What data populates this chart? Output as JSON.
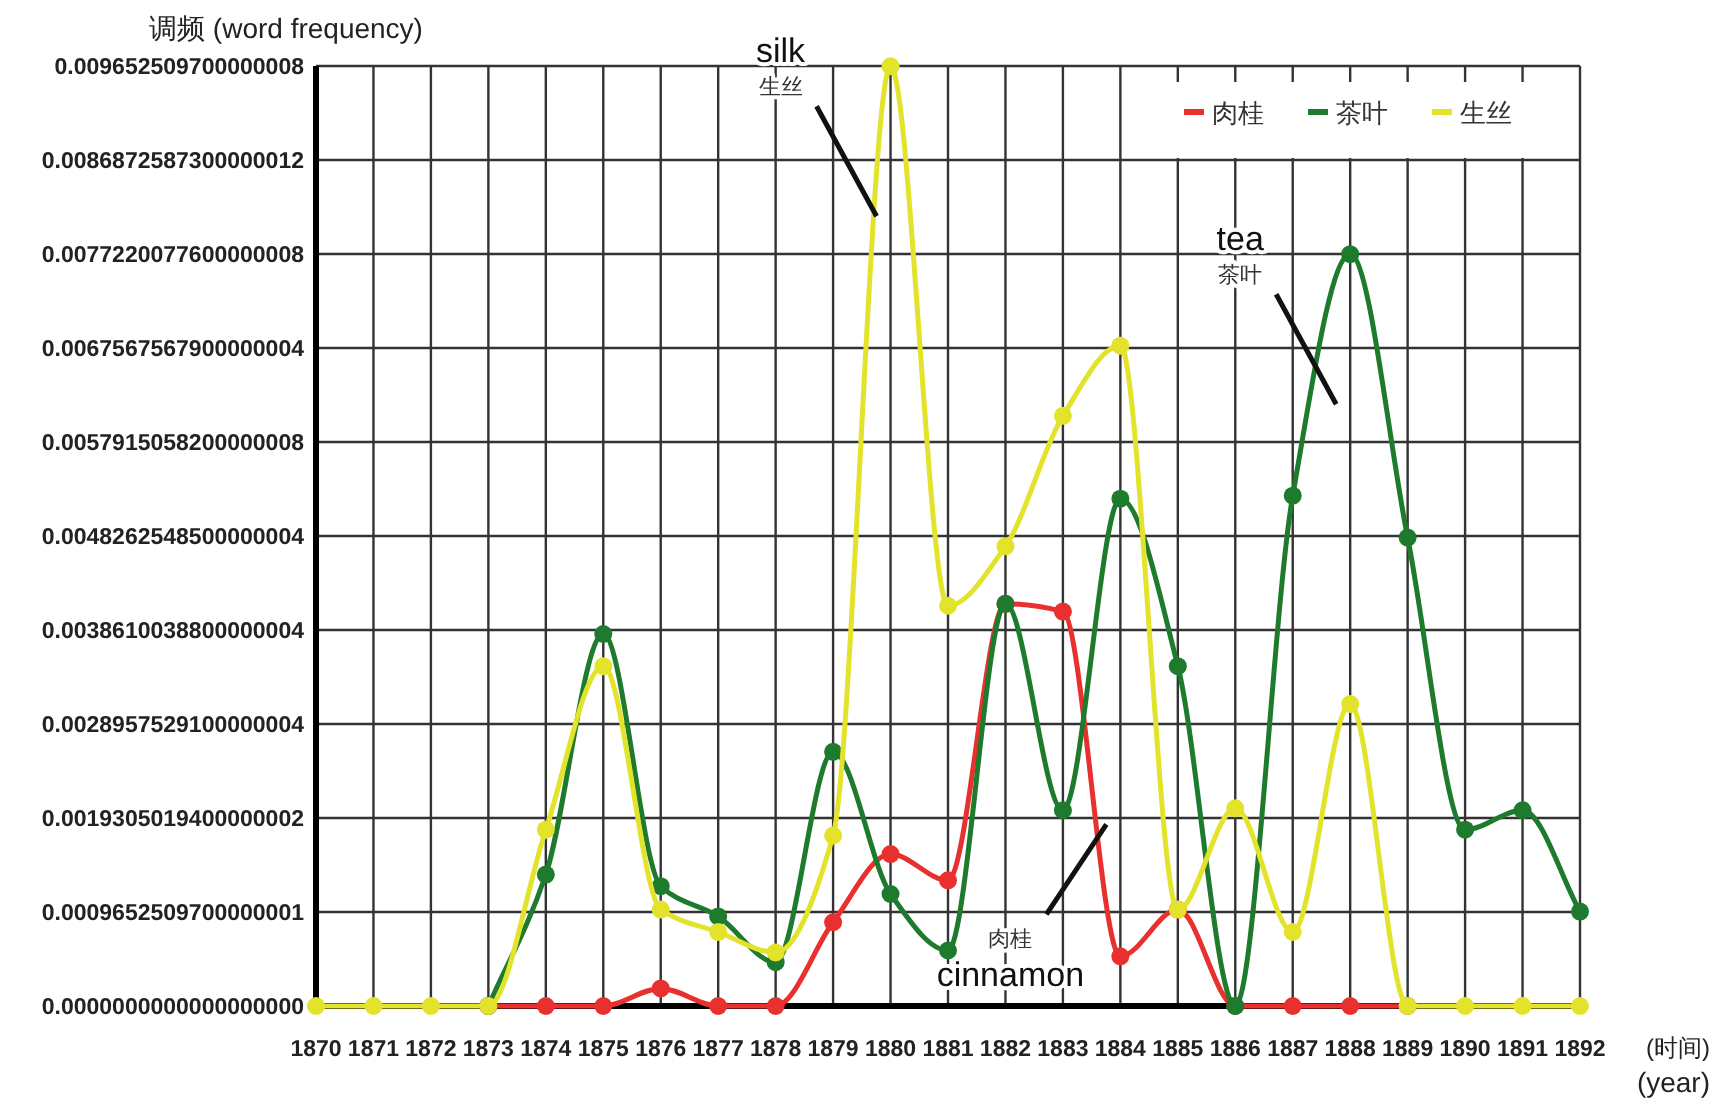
{
  "chart_data": {
    "type": "line",
    "ylabel": "调频 (word frequency)",
    "xlabel": "(时间)\n(year)",
    "categories": [
      "1870",
      "1871",
      "1872",
      "1873",
      "1874",
      "1875",
      "1876",
      "1877",
      "1878",
      "1879",
      "1880",
      "1881",
      "1882",
      "1883",
      "1884",
      "1885",
      "1886",
      "1887",
      "1888",
      "1889",
      "1890",
      "1891",
      "1892"
    ],
    "ylim": [
      0,
      0.0096525097
    ],
    "yticks": [
      {
        "value": 0,
        "label": "0.0000000000000000000"
      },
      {
        "value": 0.00096525097,
        "label": "0.0009652509700000001"
      },
      {
        "value": 0.00193050194,
        "label": "0.0019305019400000002"
      },
      {
        "value": 0.00289575291,
        "label": "0.0028957529100000004"
      },
      {
        "value": 0.00386100388,
        "label": "0.0038610038800000004"
      },
      {
        "value": 0.00482625485,
        "label": "0.0048262548500000004"
      },
      {
        "value": 0.00579150582,
        "label": "0.0057915058200000008"
      },
      {
        "value": 0.00675675679,
        "label": "0.0067567567900000004"
      },
      {
        "value": 0.00772200776,
        "label": "0.0077220077600000008"
      },
      {
        "value": 0.00868725873,
        "label": "0.0086872587300000012"
      },
      {
        "value": 0.0096525097,
        "label": "0.009652509700000008"
      }
    ],
    "grid": true,
    "legend": "top right",
    "marker": "circle",
    "line_style": "solid",
    "series": [
      {
        "name": "肉桂",
        "color": "#e8312f",
        "values": [
          null,
          null,
          null,
          0,
          0,
          0,
          0.00018,
          0,
          0,
          0.00086,
          0.00156,
          0.00129,
          0.00413,
          0.00405,
          0.00051,
          0.00099,
          0,
          0,
          0,
          0,
          null,
          null,
          null
        ]
      },
      {
        "name": "茶叶",
        "color": "#1e7b2e",
        "values": [
          null,
          null,
          null,
          0,
          0.00135,
          0.00382,
          0.00123,
          0.00092,
          0.00045,
          0.00261,
          0.00115,
          0.00057,
          0.00413,
          0.00201,
          0.00521,
          0.00349,
          0,
          0.00524,
          0.00772,
          0.00481,
          0.00181,
          0.00201,
          0.00097
        ]
      },
      {
        "name": "生丝",
        "color": "#e3e32c",
        "values": [
          0,
          0,
          0,
          0,
          0.00181,
          0.00349,
          0.00099,
          0.00076,
          0.00055,
          0.00175,
          0.00965,
          0.00411,
          0.00472,
          0.00606,
          0.00678,
          0.00099,
          0.00203,
          0.00076,
          0.0031,
          0,
          0,
          0,
          0
        ]
      }
    ],
    "annotations": [
      {
        "text": "silk\n生丝",
        "x": "1880",
        "y": 0.00965
      },
      {
        "text": "tea\n茶叶",
        "x": "1888",
        "y": 0.00772
      },
      {
        "text": "肉桂\ncinnamon",
        "x": "1884",
        "y": 0.00051
      }
    ]
  }
}
